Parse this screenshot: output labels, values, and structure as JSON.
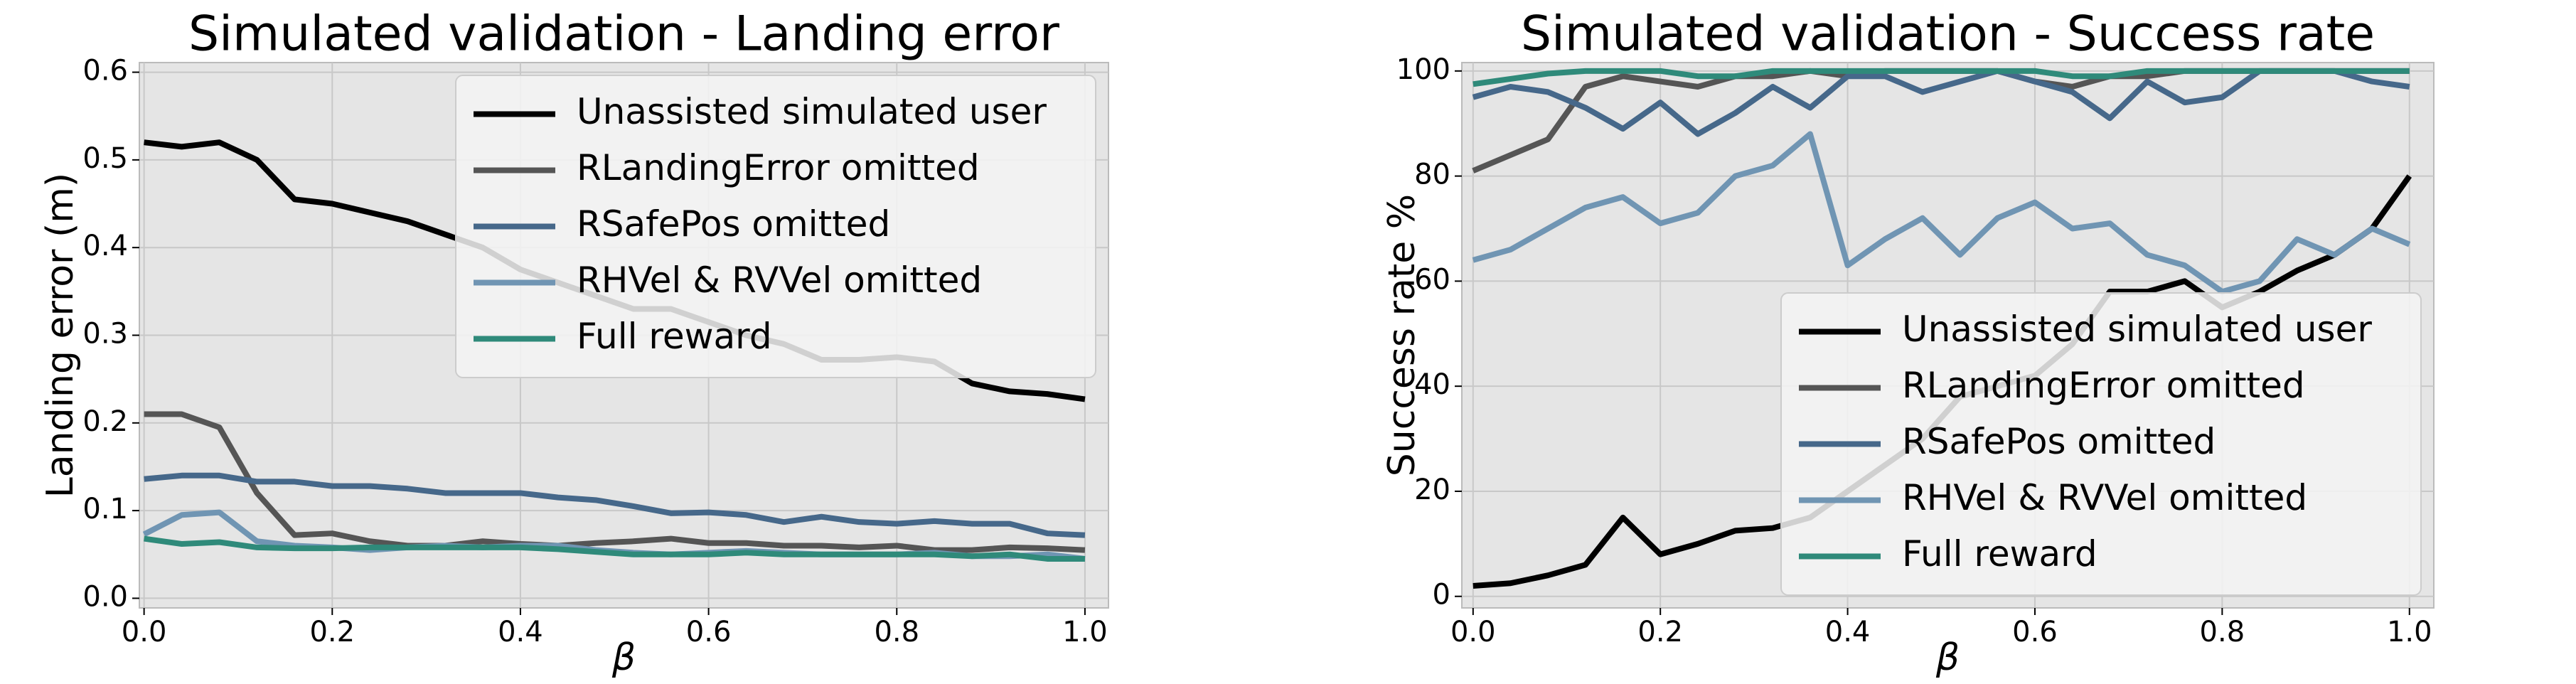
{
  "chart_data": [
    {
      "type": "line",
      "title": "Simulated validation - Landing error",
      "xlabel": "β",
      "ylabel": "Landing error (m)",
      "x": [
        0,
        0.04,
        0.08,
        0.12,
        0.16,
        0.2,
        0.24,
        0.28,
        0.32,
        0.36,
        0.4,
        0.44,
        0.48,
        0.52,
        0.56,
        0.6,
        0.64,
        0.68,
        0.72,
        0.76,
        0.8,
        0.84,
        0.88,
        0.92,
        0.96,
        1.0
      ],
      "xlim": [
        -0.005,
        1.025
      ],
      "ylim": [
        -0.011,
        0.611
      ],
      "xticks": [
        {
          "value": 0,
          "label": "0.0"
        },
        0.2,
        0.4,
        0.6,
        0.8,
        {
          "value": 1,
          "label": "1.0"
        }
      ],
      "yticks": [
        {
          "value": 0,
          "label": "0.0"
        },
        0.1,
        0.2,
        0.3,
        0.4,
        0.5,
        0.6
      ],
      "grid": true,
      "legend": "upper right",
      "series": [
        {
          "name": "Unassisted simulated user",
          "color": "#000000",
          "values": [
            0.52,
            0.515,
            0.52,
            0.5,
            0.455,
            0.45,
            0.44,
            0.43,
            0.415,
            0.4,
            0.375,
            0.36,
            0.345,
            0.33,
            0.33,
            0.315,
            0.3,
            0.29,
            0.272,
            0.272,
            0.275,
            0.27,
            0.245,
            0.236,
            0.233,
            0.227
          ]
        },
        {
          "name": "RLandingError omitted",
          "color": "#555555",
          "values": [
            0.21,
            0.21,
            0.195,
            0.12,
            0.072,
            0.074,
            0.065,
            0.06,
            0.06,
            0.065,
            0.062,
            0.06,
            0.063,
            0.065,
            0.068,
            0.063,
            0.063,
            0.06,
            0.06,
            0.058,
            0.06,
            0.055,
            0.055,
            0.058,
            0.057,
            0.055
          ]
        },
        {
          "name": "RSafePos omitted",
          "color": "#46688a",
          "values": [
            0.136,
            0.14,
            0.14,
            0.133,
            0.133,
            0.128,
            0.128,
            0.125,
            0.12,
            0.12,
            0.12,
            0.115,
            0.112,
            0.105,
            0.097,
            0.098,
            0.095,
            0.087,
            0.093,
            0.087,
            0.085,
            0.088,
            0.085,
            0.085,
            0.074,
            0.072
          ]
        },
        {
          "name": "RHVel & RVVel omitted",
          "color": "#7095b3",
          "values": [
            0.073,
            0.095,
            0.098,
            0.065,
            0.06,
            0.058,
            0.055,
            0.058,
            0.06,
            0.058,
            0.06,
            0.06,
            0.055,
            0.052,
            0.05,
            0.052,
            0.054,
            0.052,
            0.05,
            0.05,
            0.05,
            0.052,
            0.048,
            0.048,
            0.05,
            0.045
          ]
        },
        {
          "name": "Full reward",
          "color": "#2f8a7a",
          "values": [
            0.068,
            0.062,
            0.064,
            0.058,
            0.057,
            0.057,
            0.058,
            0.058,
            0.058,
            0.058,
            0.058,
            0.056,
            0.053,
            0.05,
            0.05,
            0.05,
            0.052,
            0.05,
            0.05,
            0.05,
            0.05,
            0.05,
            0.048,
            0.05,
            0.045,
            0.045
          ]
        }
      ]
    },
    {
      "type": "line",
      "title": "Simulated validation - Success rate",
      "xlabel": "β",
      "ylabel": "Success rate %",
      "x": [
        0,
        0.04,
        0.08,
        0.12,
        0.16,
        0.2,
        0.24,
        0.28,
        0.32,
        0.36,
        0.4,
        0.44,
        0.48,
        0.52,
        0.56,
        0.6,
        0.64,
        0.68,
        0.72,
        0.76,
        0.8,
        0.84,
        0.88,
        0.92,
        0.96,
        1.0
      ],
      "xlim": [
        -0.012,
        1.026
      ],
      "ylim": [
        -2.2,
        101.6
      ],
      "xticks": [
        {
          "value": 0,
          "label": "0.0"
        },
        0.2,
        0.4,
        0.6,
        0.8,
        {
          "value": 1,
          "label": "1.0"
        }
      ],
      "yticks": [
        0,
        20,
        40,
        60,
        80,
        100
      ],
      "grid": true,
      "legend": "lower right",
      "series": [
        {
          "name": "Unassisted simulated user",
          "color": "#000000",
          "values": [
            2,
            2.5,
            4,
            6,
            15,
            8,
            10,
            12.5,
            13,
            15,
            20,
            25,
            30,
            38,
            40,
            42,
            48,
            58,
            58,
            60,
            55,
            58,
            62,
            65,
            70,
            80
          ]
        },
        {
          "name": "RLandingError omitted",
          "color": "#555555",
          "values": [
            81,
            84,
            87,
            97,
            99,
            98,
            97,
            99,
            99,
            100,
            99,
            100,
            100,
            100,
            100,
            98,
            97,
            99,
            99,
            100,
            100,
            100,
            100,
            100,
            100,
            100
          ]
        },
        {
          "name": "RSafePos omitted",
          "color": "#46688a",
          "values": [
            95,
            97,
            96,
            93,
            89,
            94,
            88,
            92,
            97,
            93,
            99,
            99,
            96,
            98,
            100,
            98,
            96,
            91,
            98,
            94,
            95,
            100,
            100,
            100,
            98,
            97
          ]
        },
        {
          "name": "RHVel & RVVel omitted",
          "color": "#7095b3",
          "values": [
            64,
            66,
            70,
            74,
            76,
            71,
            73,
            80,
            82,
            88,
            63,
            68,
            72,
            65,
            72,
            75,
            70,
            71,
            65,
            63,
            58,
            60,
            68,
            65,
            70,
            67
          ]
        },
        {
          "name": "Full reward",
          "color": "#2f8a7a",
          "values": [
            97.5,
            98.5,
            99.5,
            100,
            100,
            100,
            99,
            99,
            100,
            100,
            100,
            100,
            100,
            100,
            100,
            100,
            99,
            99,
            100,
            100,
            100,
            100,
            100,
            100,
            100,
            100
          ]
        }
      ]
    }
  ]
}
